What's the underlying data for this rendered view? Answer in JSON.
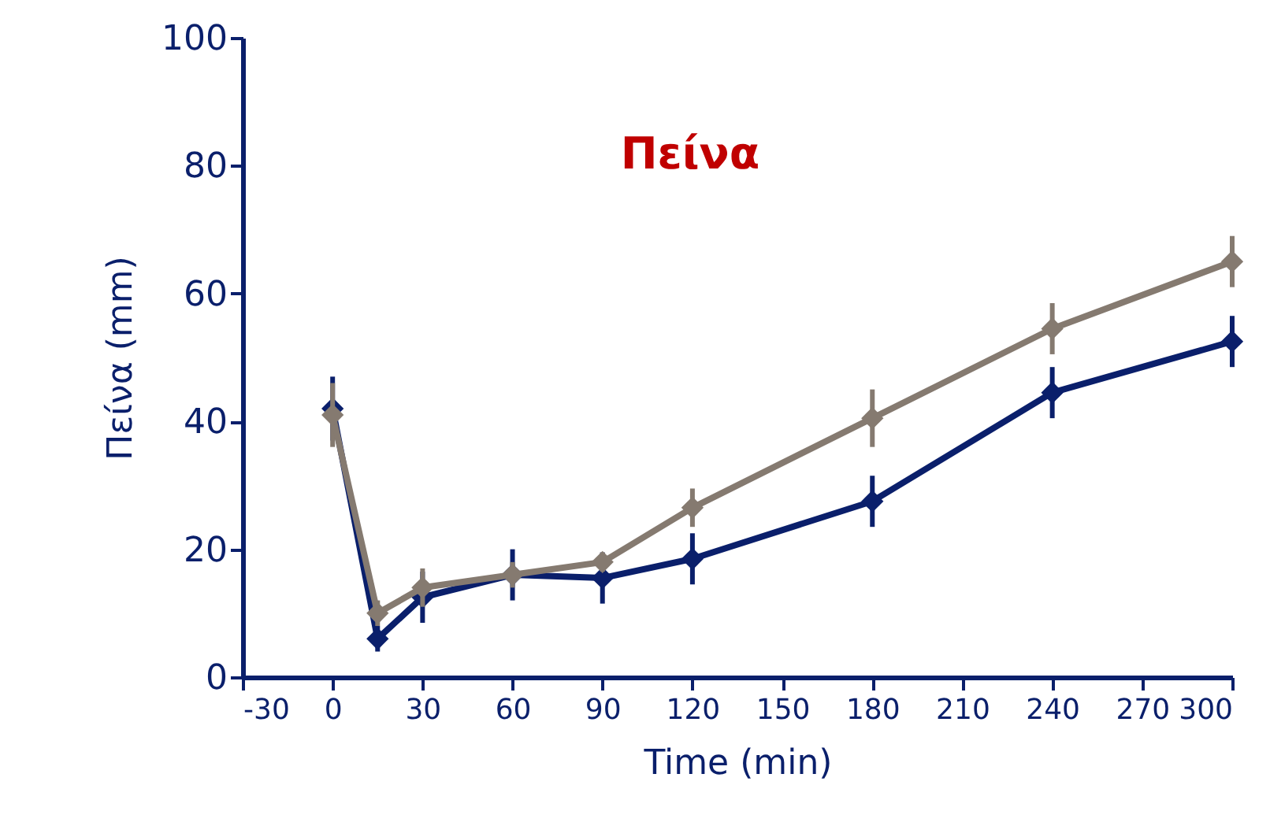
{
  "chart_data": {
    "type": "line",
    "title": "Πείνα",
    "xlabel": "Time (min)",
    "ylabel": "Πείνα (mm)",
    "x": [
      0,
      15,
      30,
      60,
      90,
      120,
      180,
      240,
      300
    ],
    "series": [
      {
        "color": "#0a1f6b",
        "values": [
          42,
          6,
          12.5,
          16,
          15.5,
          18.5,
          27.5,
          44.5,
          52.5
        ],
        "errors": [
          5,
          2,
          4,
          4,
          4,
          4,
          4,
          4,
          4
        ]
      },
      {
        "color": "#857a70",
        "values": [
          41,
          10,
          14,
          16,
          18,
          26.5,
          40.5,
          54.5,
          65
        ],
        "errors": [
          5,
          2,
          3,
          2,
          1.5,
          3,
          4.5,
          4,
          4
        ]
      }
    ],
    "xlim": [
      -30,
      300
    ],
    "xticks": [
      -30,
      0,
      30,
      60,
      90,
      120,
      150,
      180,
      210,
      240,
      270,
      300
    ],
    "ylim": [
      0,
      100
    ],
    "yticks": [
      0,
      20,
      40,
      60,
      80,
      100
    ],
    "marker": "diamond",
    "line_style": "solid",
    "grid": false
  }
}
